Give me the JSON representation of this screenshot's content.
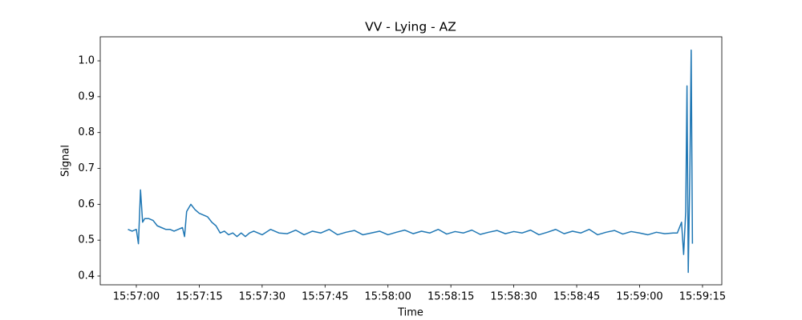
{
  "chart_data": {
    "type": "line",
    "title": "VV - Lying - AZ",
    "x_label": "Time",
    "y_label": "Signal",
    "color": "#1f77b4",
    "x": [
      "15:56:58",
      "15:56:59",
      "15:57:00",
      "15:57:00.5",
      "15:57:01",
      "15:57:01.5",
      "15:57:02",
      "15:57:03",
      "15:57:04",
      "15:57:05",
      "15:57:06",
      "15:57:07",
      "15:57:08",
      "15:57:09",
      "15:57:10",
      "15:57:11",
      "15:57:11.5",
      "15:57:12",
      "15:57:13",
      "15:57:14",
      "15:57:15",
      "15:57:16",
      "15:57:17",
      "15:57:18",
      "15:57:19",
      "15:57:20",
      "15:57:21",
      "15:57:22",
      "15:57:23",
      "15:57:24",
      "15:57:25",
      "15:57:26",
      "15:57:27",
      "15:57:28",
      "15:57:30",
      "15:57:32",
      "15:57:34",
      "15:57:36",
      "15:57:38",
      "15:57:40",
      "15:57:42",
      "15:57:44",
      "15:57:46",
      "15:57:48",
      "15:57:50",
      "15:57:52",
      "15:57:54",
      "15:57:56",
      "15:57:58",
      "15:58:00",
      "15:58:02",
      "15:58:04",
      "15:58:06",
      "15:58:08",
      "15:58:10",
      "15:58:12",
      "15:58:14",
      "15:58:16",
      "15:58:18",
      "15:58:20",
      "15:58:22",
      "15:58:24",
      "15:58:26",
      "15:58:28",
      "15:58:30",
      "15:58:32",
      "15:58:34",
      "15:58:36",
      "15:58:38",
      "15:58:40",
      "15:58:42",
      "15:58:44",
      "15:58:46",
      "15:58:48",
      "15:58:50",
      "15:58:52",
      "15:58:54",
      "15:58:56",
      "15:58:58",
      "15:59:00",
      "15:59:02",
      "15:59:04",
      "15:59:06",
      "15:59:08",
      "15:59:09",
      "15:59:10",
      "15:59:10.5",
      "15:59:11",
      "15:59:11.3",
      "15:59:11.6",
      "15:59:12",
      "15:59:12.3",
      "15:59:12.6"
    ],
    "values": [
      0.53,
      0.525,
      0.53,
      0.49,
      0.64,
      0.55,
      0.56,
      0.56,
      0.555,
      0.54,
      0.535,
      0.53,
      0.53,
      0.525,
      0.53,
      0.535,
      0.51,
      0.58,
      0.6,
      0.585,
      0.575,
      0.57,
      0.565,
      0.55,
      0.54,
      0.52,
      0.525,
      0.515,
      0.52,
      0.51,
      0.52,
      0.51,
      0.52,
      0.525,
      0.515,
      0.53,
      0.52,
      0.518,
      0.528,
      0.515,
      0.525,
      0.52,
      0.53,
      0.515,
      0.522,
      0.527,
      0.515,
      0.52,
      0.525,
      0.515,
      0.522,
      0.528,
      0.518,
      0.525,
      0.52,
      0.53,
      0.517,
      0.524,
      0.52,
      0.528,
      0.516,
      0.522,
      0.527,
      0.518,
      0.524,
      0.52,
      0.528,
      0.515,
      0.522,
      0.53,
      0.518,
      0.525,
      0.52,
      0.53,
      0.515,
      0.522,
      0.527,
      0.517,
      0.524,
      0.52,
      0.515,
      0.522,
      0.518,
      0.52,
      0.52,
      0.55,
      0.46,
      0.58,
      0.93,
      0.41,
      0.7,
      1.03,
      0.49
    ],
    "xlim": [
      "15:56:51.4",
      "15:59:19.6"
    ],
    "xticks": [
      "15:57:00",
      "15:57:15",
      "15:57:30",
      "15:57:45",
      "15:58:00",
      "15:58:15",
      "15:58:30",
      "15:58:45",
      "15:59:00",
      "15:59:15"
    ],
    "ylim": [
      0.3755,
      1.067
    ],
    "yticks": [
      0.4,
      0.5,
      0.6,
      0.7,
      0.8,
      0.9,
      {
        "value": 1,
        "label": "1.0"
      }
    ]
  }
}
